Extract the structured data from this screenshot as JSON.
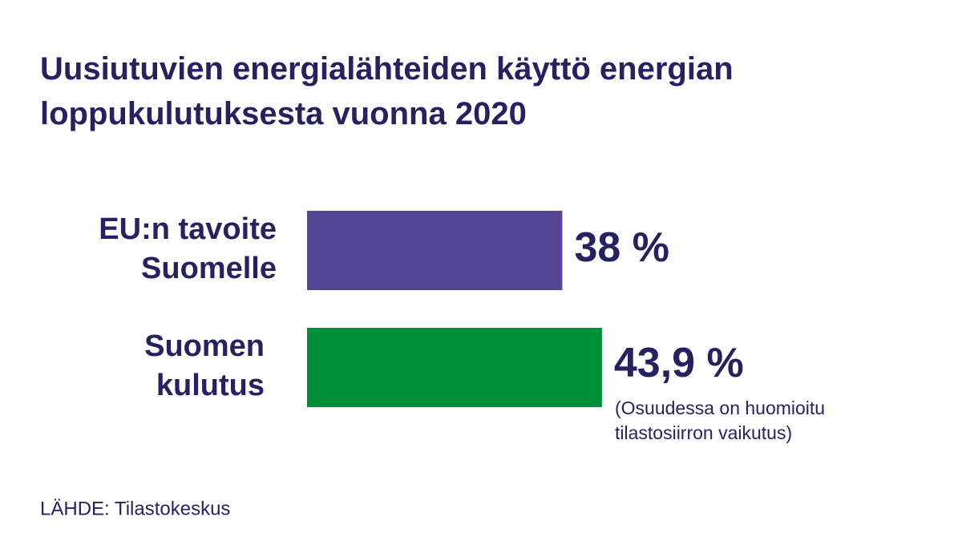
{
  "chart_data": {
    "type": "barh",
    "title": "Uusiutuvien energialähteiden käyttö energian loppukulutuksesta vuonna 2020",
    "categories": [
      [
        "EU:n tavoite",
        "Suomelle"
      ],
      [
        "Suomen",
        "kulutus"
      ]
    ],
    "values": [
      38,
      43.9
    ],
    "value_labels": [
      "38 %",
      "43,9 %"
    ],
    "colors": [
      "#574696",
      "#008f39"
    ],
    "annotation": [
      "(Osuudessa on huomioitu",
      "tilastosiirron vaikutus)"
    ],
    "source": "LÄHDE: Tilastokeskus"
  }
}
